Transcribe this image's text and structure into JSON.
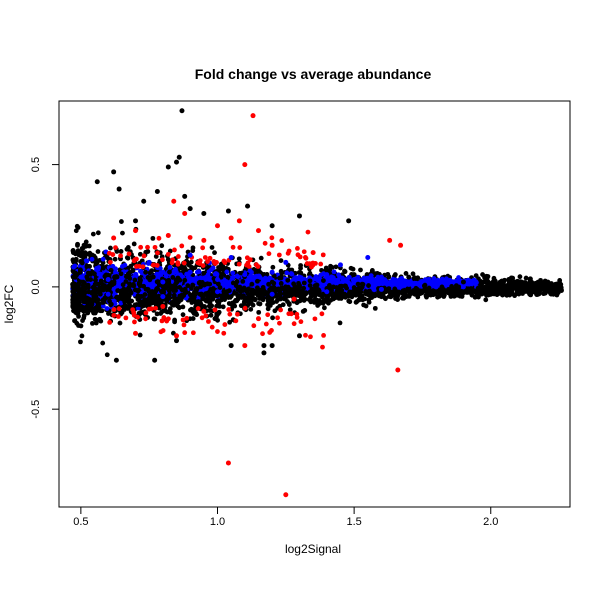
{
  "chart_data": {
    "type": "scatter",
    "title": "Fold change vs average abundance",
    "xlabel": "log2Signal",
    "ylabel": "log2FC",
    "xlim": [
      0.42,
      2.29
    ],
    "ylim": [
      -0.9,
      0.76
    ],
    "xticks": [
      0.5,
      1.0,
      1.5,
      2.0
    ],
    "xtick_labels": [
      "0.5",
      "1.0",
      "1.5",
      "2.0"
    ],
    "yticks": [
      -0.5,
      0.0,
      0.5
    ],
    "ytick_labels": [
      "-0.5",
      "0.0",
      "0.5"
    ],
    "grid": false,
    "legend": "none",
    "colors": {
      "black": "#000000",
      "blue": "#0000ff",
      "red": "#ff0000"
    },
    "series": [
      {
        "color": "black",
        "points": [
          [
            0.87,
            0.72
          ],
          [
            0.86,
            0.53
          ],
          [
            0.85,
            0.51
          ],
          [
            0.82,
            0.49
          ],
          [
            0.62,
            0.47
          ],
          [
            0.56,
            0.43
          ],
          [
            0.64,
            0.4
          ],
          [
            0.78,
            0.39
          ],
          [
            0.73,
            0.35
          ],
          [
            0.88,
            0.37
          ],
          [
            0.9,
            0.32
          ],
          [
            0.95,
            0.3
          ],
          [
            1.04,
            0.31
          ],
          [
            1.11,
            0.33
          ],
          [
            1.48,
            0.27
          ],
          [
            1.3,
            0.29
          ],
          [
            0.7,
            0.27
          ],
          [
            1.2,
            0.25
          ],
          [
            0.63,
            -0.3
          ],
          [
            0.77,
            -0.3
          ],
          [
            1.17,
            -0.27
          ],
          [
            1.17,
            -0.24
          ],
          [
            1.2,
            -0.24
          ],
          [
            1.05,
            -0.24
          ],
          [
            0.85,
            -0.22
          ],
          [
            1.3,
            -0.2
          ],
          [
            0.47,
            0.01
          ],
          [
            2.25,
            0.0
          ],
          [
            2.2,
            0.0
          ],
          [
            2.1,
            0.01
          ],
          [
            2.0,
            -0.01
          ],
          [
            1.9,
            0.02
          ],
          [
            1.8,
            -0.02
          ],
          [
            1.7,
            0.04
          ],
          [
            1.6,
            -0.04
          ],
          [
            1.5,
            0.05
          ],
          [
            1.4,
            -0.06
          ]
        ]
      },
      {
        "color": "blue",
        "points": [
          [
            0.5,
            0.04
          ],
          [
            0.6,
            0.03
          ],
          [
            0.7,
            0.05
          ],
          [
            0.8,
            0.02
          ],
          [
            0.9,
            0.06
          ],
          [
            1.0,
            0.03
          ],
          [
            1.1,
            0.05
          ],
          [
            1.2,
            0.06
          ],
          [
            1.3,
            0.04
          ],
          [
            1.4,
            0.05
          ],
          [
            1.5,
            0.03
          ],
          [
            1.6,
            0.04
          ],
          [
            1.7,
            0.01
          ],
          [
            1.8,
            0.0
          ],
          [
            1.9,
            0.0
          ],
          [
            0.6,
            -0.03
          ],
          [
            0.8,
            -0.04
          ],
          [
            1.0,
            -0.02
          ],
          [
            1.2,
            -0.03
          ],
          [
            1.4,
            -0.02
          ],
          [
            1.6,
            -0.01
          ],
          [
            0.9,
            0.13
          ],
          [
            1.05,
            0.12
          ],
          [
            1.25,
            0.1
          ],
          [
            1.45,
            0.09
          ],
          [
            1.55,
            0.12
          ],
          [
            0.75,
            0.1
          ]
        ]
      },
      {
        "color": "red",
        "points": [
          [
            1.13,
            0.7
          ],
          [
            1.1,
            0.5
          ],
          [
            0.84,
            0.35
          ],
          [
            0.88,
            0.3
          ],
          [
            1.08,
            0.27
          ],
          [
            1.15,
            0.23
          ],
          [
            1.0,
            0.25
          ],
          [
            0.7,
            0.23
          ],
          [
            0.62,
            0.2
          ],
          [
            0.82,
            0.21
          ],
          [
            0.95,
            0.19
          ],
          [
            1.05,
            0.2
          ],
          [
            1.2,
            0.17
          ],
          [
            1.35,
            0.14
          ],
          [
            1.63,
            0.19
          ],
          [
            1.67,
            0.17
          ],
          [
            0.7,
            -0.19
          ],
          [
            0.85,
            -0.2
          ],
          [
            1.1,
            -0.24
          ],
          [
            1.04,
            -0.72
          ],
          [
            1.25,
            -0.85
          ],
          [
            1.66,
            -0.34
          ],
          [
            1.27,
            -0.11
          ],
          [
            1.28,
            -0.05
          ],
          [
            0.8,
            -0.08
          ],
          [
            0.95,
            -0.1
          ],
          [
            1.15,
            -0.13
          ]
        ]
      }
    ]
  }
}
